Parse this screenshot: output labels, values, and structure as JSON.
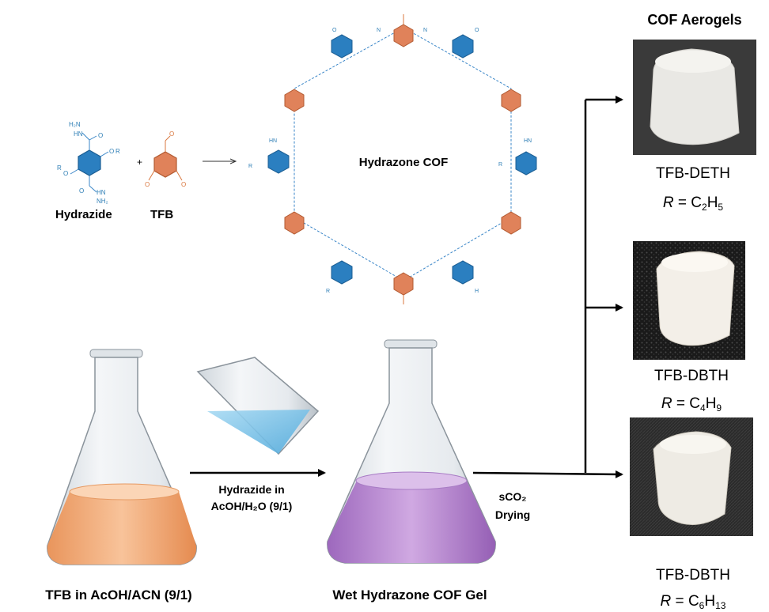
{
  "colors": {
    "hydrazide_ring": "#2b7fc0",
    "tfb_ring": "#e0825a",
    "bond_blue": "#3a86c8",
    "bond_orange": "#d9773f",
    "orange_solution": "#f6b889",
    "purple_solution": "#b98ad0",
    "water": "#7fc3e8",
    "arrow": "#000000"
  },
  "reaction": {
    "monomer1_label": "Hydrazide",
    "monomer2_label": "TFB",
    "plus": "+",
    "cof_label": "Hydrazone COF"
  },
  "chem_labels": {
    "h2n": "H₂N",
    "nh": "HN",
    "nh2": "NH₂",
    "o": "O",
    "r": "R",
    "n": "N",
    "h": "H"
  },
  "process": {
    "flask1_label": "TFB in AcOH/ACN (9/1)",
    "step1_label_line1": "Hydrazide in",
    "step1_label_line2": "AcOH/H₂O  (9/1)",
    "flask2_label": "Wet Hydrazone COF Gel",
    "step2_label_line1": "sCO₂",
    "step2_label_line2": "Drying"
  },
  "aerogels": {
    "title": "COF Aerogels",
    "items": [
      {
        "name": "TFB-DETH",
        "r_prefix": "R",
        "r_eq": " = ",
        "formula_c": "C",
        "sub_c": "2",
        "formula_h": "H",
        "sub_h": "5"
      },
      {
        "name": "TFB-DBTH",
        "r_prefix": "R",
        "r_eq": " = ",
        "formula_c": "C",
        "sub_c": "4",
        "formula_h": "H",
        "sub_h": "9"
      },
      {
        "name": "TFB-DBTH",
        "r_prefix": "R",
        "r_eq": " = ",
        "formula_c": "C",
        "sub_c": "6",
        "formula_h": "H",
        "sub_h": "13"
      }
    ]
  }
}
